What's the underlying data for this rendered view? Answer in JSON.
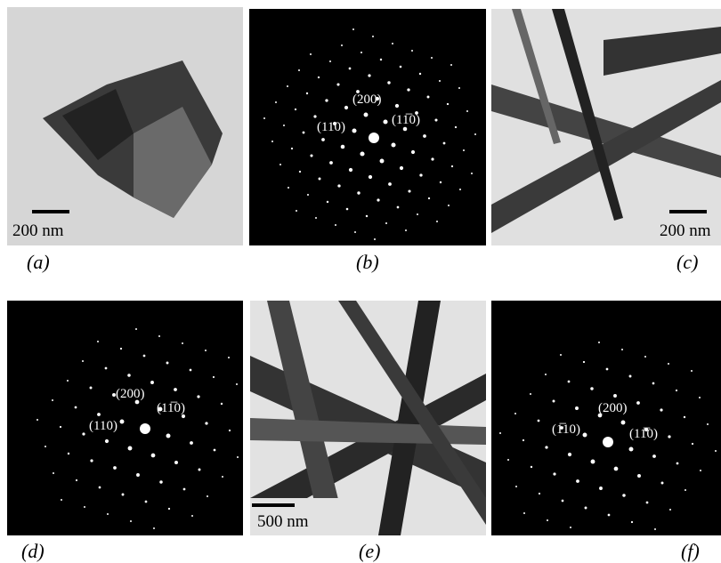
{
  "panels": [
    {
      "label": "(a)",
      "scale_bar": "200 nm"
    },
    {
      "label": "(b)",
      "spots": [
        "(200)",
        "(110)",
        "(11̅0)"
      ]
    },
    {
      "label": "(c)",
      "scale_bar": "200 nm"
    },
    {
      "label": "(d)",
      "spots": [
        "(200)",
        "(110)",
        "(11̅0)"
      ]
    },
    {
      "label": "(e)",
      "scale_bar": "500 nm"
    },
    {
      "label": "(f)",
      "spots": [
        "(200)",
        "(1̅10)",
        "(11̅0)"
      ]
    }
  ]
}
